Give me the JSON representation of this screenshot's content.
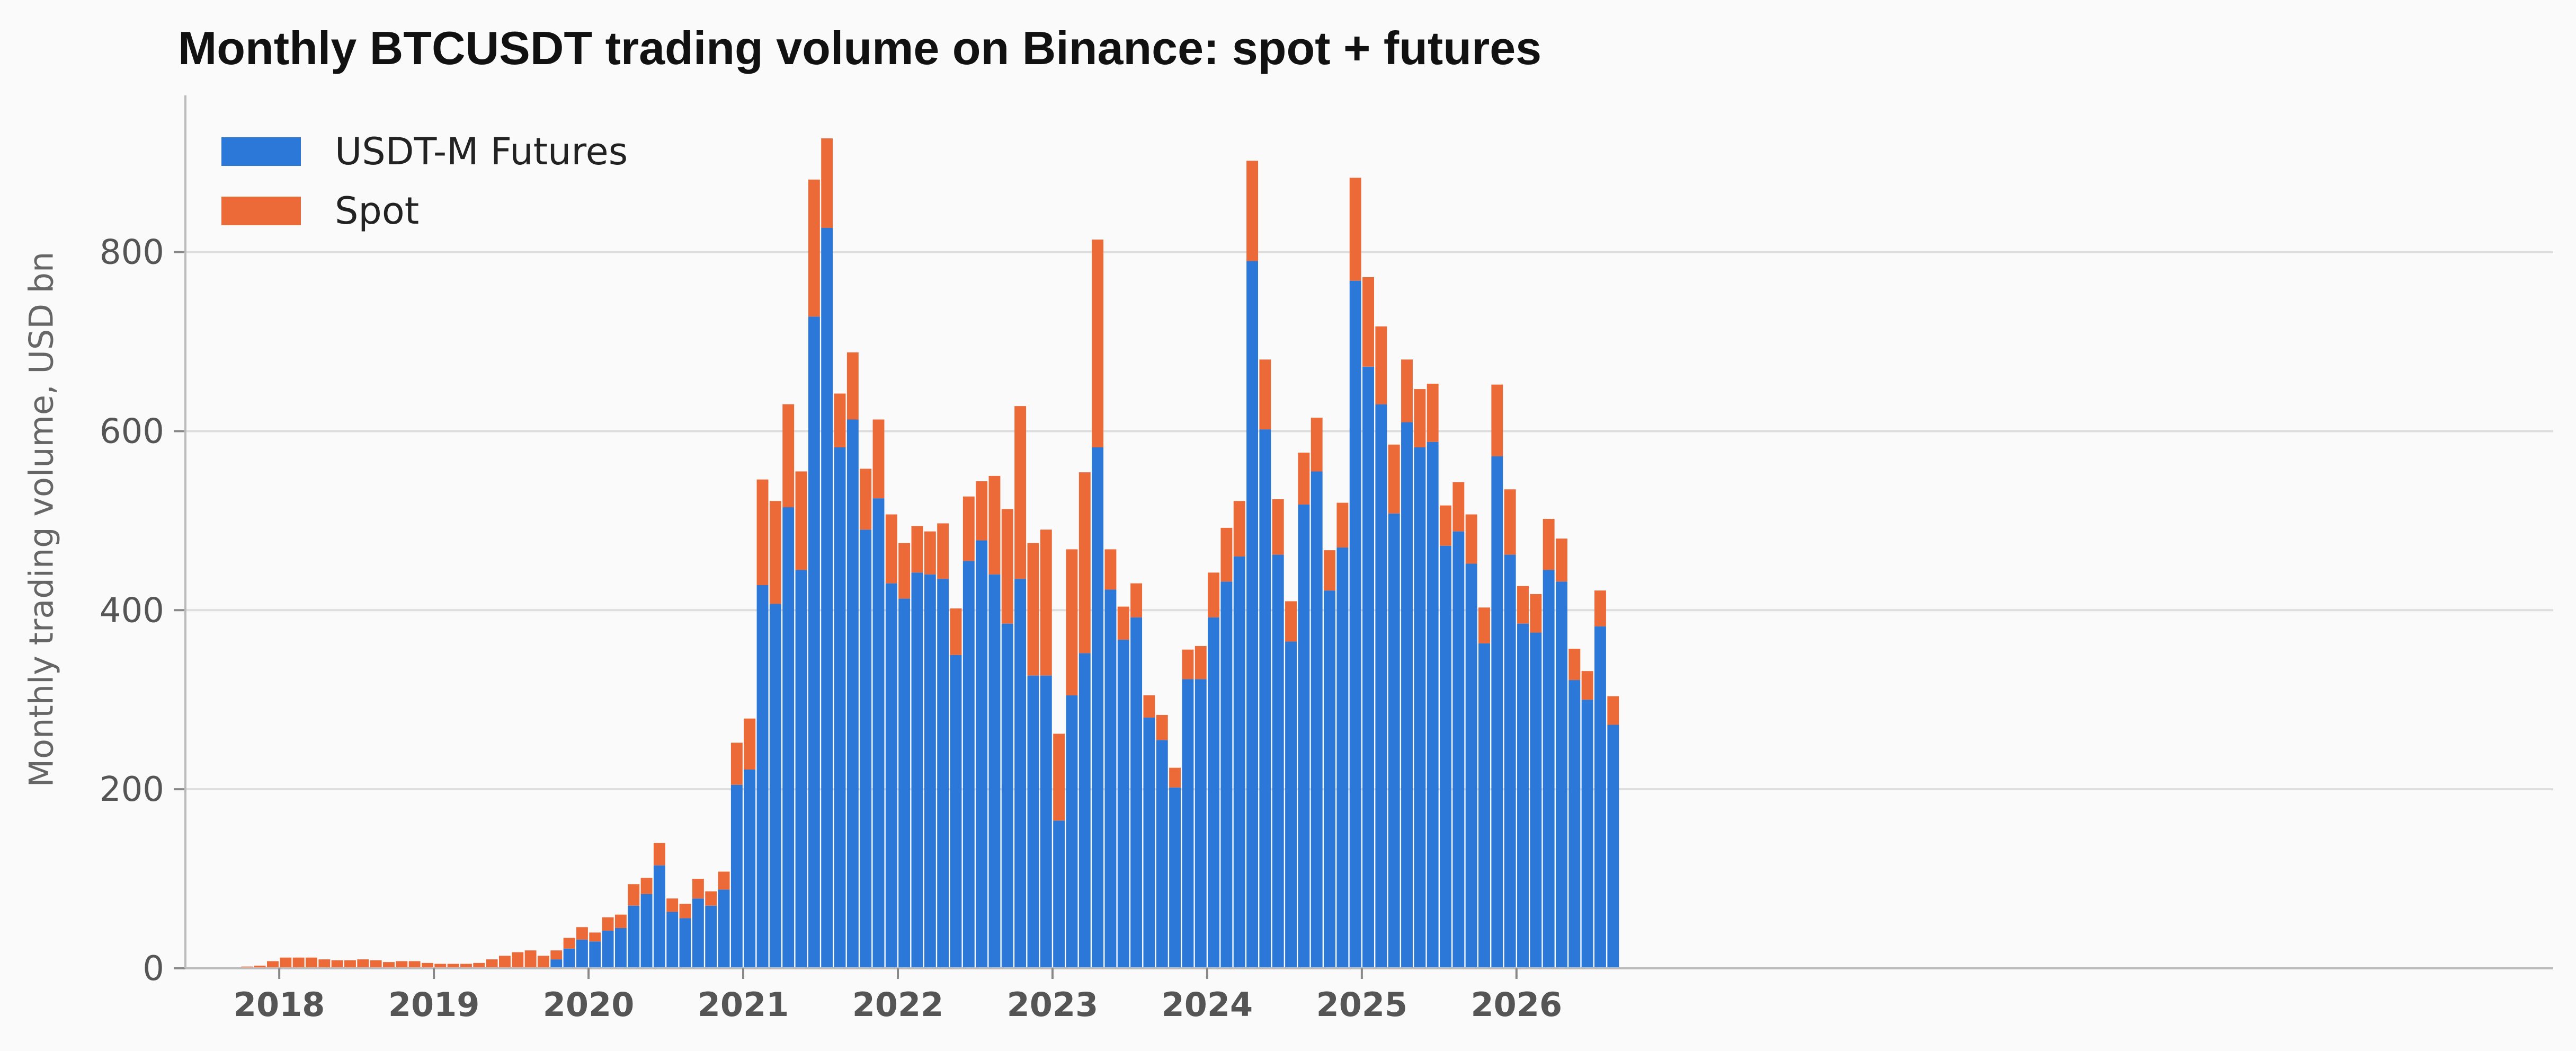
{
  "chart_data": {
    "type": "bar",
    "stacked": true,
    "title": "Monthly BTCUSDT trading volume on Binance: spot + futures",
    "xlabel": "",
    "ylabel": "Monthly trading volume, USD bn",
    "ylim": [
      0,
      975
    ],
    "yticks": [
      0,
      200,
      400,
      600,
      800
    ],
    "x_tick_labels": [
      "2018",
      "2019",
      "2020",
      "2021",
      "2022",
      "2023",
      "2024",
      "2025",
      "2026"
    ],
    "grid": "horizontal",
    "legend_position": "top-left",
    "start_month": "2017-09",
    "x_tick_month_index": [
      4,
      16,
      28,
      40,
      52,
      64,
      76,
      88,
      100
    ],
    "series": [
      {
        "name": "USDT-M Futures",
        "color": "#2b78d8",
        "values": [
          0,
          0,
          0,
          0,
          0,
          0,
          0,
          0,
          0,
          0,
          0,
          0,
          0,
          0,
          0,
          0,
          0,
          0,
          0,
          0,
          0,
          0,
          0,
          0,
          0,
          10,
          22,
          32,
          30,
          42,
          45,
          70,
          83,
          115,
          63,
          56,
          78,
          70,
          88,
          205,
          222,
          428,
          407,
          515,
          445,
          728,
          827,
          582,
          613,
          490,
          525,
          430,
          413,
          442,
          440,
          435,
          350,
          455,
          478,
          440,
          385,
          435,
          327,
          327,
          165,
          305,
          352,
          582,
          423,
          367,
          392,
          280,
          255,
          202,
          323,
          323,
          392,
          432,
          460,
          790,
          602,
          462,
          365,
          518,
          555,
          422,
          470,
          768,
          672,
          630,
          508,
          610,
          582,
          588,
          472,
          488,
          452,
          363,
          572,
          462,
          385,
          375,
          445,
          432,
          322,
          300,
          382,
          272
        ]
      },
      {
        "name": "Spot",
        "color": "#ec6a37",
        "values": [
          1,
          2,
          3,
          8,
          12,
          12,
          12,
          10,
          9,
          9,
          10,
          9,
          7,
          8,
          8,
          6,
          5,
          5,
          5,
          6,
          10,
          14,
          18,
          20,
          14,
          10,
          12,
          14,
          10,
          15,
          15,
          24,
          18,
          25,
          15,
          16,
          22,
          16,
          20,
          47,
          57,
          118,
          115,
          115,
          110,
          153,
          100,
          60,
          75,
          68,
          88,
          77,
          62,
          52,
          48,
          62,
          52,
          72,
          66,
          110,
          128,
          193,
          148,
          163,
          97,
          163,
          202,
          232,
          45,
          37,
          38,
          25,
          28,
          22,
          33,
          37,
          50,
          60,
          62,
          112,
          78,
          62,
          45,
          58,
          60,
          45,
          50,
          115,
          100,
          87,
          77,
          70,
          65,
          65,
          45,
          55,
          55,
          40,
          80,
          73,
          42,
          43,
          57,
          48,
          35,
          32,
          40,
          32
        ]
      }
    ]
  }
}
